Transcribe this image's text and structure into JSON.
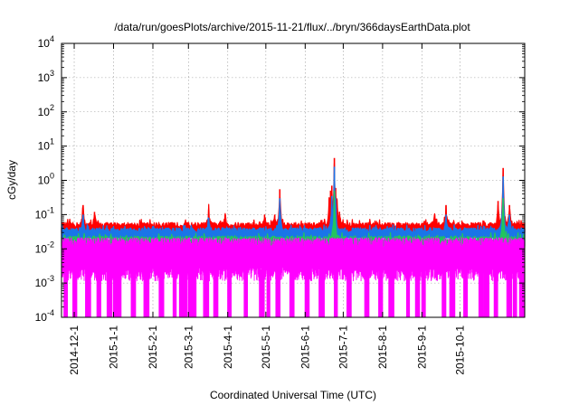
{
  "chart_data": {
    "type": "line",
    "title": "/data/run/goesPlots/archive/2015-11-21/flux/../bryn/366daysEarthData.plot",
    "xlabel": "Coordinated Universal Time (UTC)",
    "ylabel": "cGy/day",
    "yscale": "log",
    "ylim": [
      0.0001,
      10000
    ],
    "xlim": [
      "2014-11-21",
      "2015-11-21"
    ],
    "grid": true,
    "legend": "none",
    "yticks": [
      {
        "value": 0.0001,
        "mant": "10",
        "exp": "-4"
      },
      {
        "value": 0.001,
        "mant": "10",
        "exp": "-3"
      },
      {
        "value": 0.01,
        "mant": "10",
        "exp": "-2"
      },
      {
        "value": 0.1,
        "mant": "10",
        "exp": "-1"
      },
      {
        "value": 1,
        "mant": "10",
        "exp": "0"
      },
      {
        "value": 10,
        "mant": "10",
        "exp": "1"
      },
      {
        "value": 100,
        "mant": "10",
        "exp": "2"
      },
      {
        "value": 1000,
        "mant": "10",
        "exp": "3"
      },
      {
        "value": 10000,
        "mant": "10",
        "exp": "4"
      }
    ],
    "xticks": [
      {
        "date": "2014-12-01",
        "label": "2014-12-1"
      },
      {
        "date": "2015-01-01",
        "label": "2015-1-1"
      },
      {
        "date": "2015-02-01",
        "label": "2015-2-1"
      },
      {
        "date": "2015-03-01",
        "label": "2015-3-1"
      },
      {
        "date": "2015-04-01",
        "label": "2015-4-1"
      },
      {
        "date": "2015-05-01",
        "label": "2015-5-1"
      },
      {
        "date": "2015-06-01",
        "label": "2015-6-1"
      },
      {
        "date": "2015-07-01",
        "label": "2015-7-1"
      },
      {
        "date": "2015-08-01",
        "label": "2015-8-1"
      },
      {
        "date": "2015-09-01",
        "label": "2015-9-1"
      },
      {
        "date": "2015-10-01",
        "label": "2015-10-1"
      }
    ],
    "series": [
      {
        "color": "#ff0000",
        "baseline": 0.05,
        "spikes": [
          {
            "date": "2014-12-08",
            "value": 0.19
          },
          {
            "date": "2014-12-17",
            "value": 0.12
          },
          {
            "date": "2015-03-17",
            "value": 0.14
          },
          {
            "date": "2015-03-30",
            "value": 0.1
          },
          {
            "date": "2015-04-30",
            "value": 0.1
          },
          {
            "date": "2015-05-08",
            "value": 0.1
          },
          {
            "date": "2015-05-12",
            "value": 0.55
          },
          {
            "date": "2015-06-20",
            "value": 0.3
          },
          {
            "date": "2015-06-21",
            "value": 0.5
          },
          {
            "date": "2015-06-22",
            "value": 0.7
          },
          {
            "date": "2015-06-24",
            "value": 4.5
          },
          {
            "date": "2015-06-25",
            "value": 0.6
          },
          {
            "date": "2015-06-26",
            "value": 0.28
          },
          {
            "date": "2015-06-28",
            "value": 0.12
          },
          {
            "date": "2015-09-11",
            "value": 0.1
          },
          {
            "date": "2015-09-20",
            "value": 0.19
          },
          {
            "date": "2015-10-31",
            "value": 0.25
          },
          {
            "date": "2015-11-04",
            "value": 2.3
          },
          {
            "date": "2015-11-09",
            "value": 0.19
          }
        ]
      },
      {
        "color": "#1a75e8",
        "baseline": 0.035,
        "spikes": [
          {
            "date": "2014-12-08",
            "value": 0.1
          },
          {
            "date": "2015-03-17",
            "value": 0.08
          },
          {
            "date": "2015-05-12",
            "value": 0.3
          },
          {
            "date": "2015-06-22",
            "value": 0.35
          },
          {
            "date": "2015-06-24",
            "value": 2.5
          },
          {
            "date": "2015-06-25",
            "value": 0.3
          },
          {
            "date": "2015-09-20",
            "value": 0.1
          },
          {
            "date": "2015-11-04",
            "value": 1.3
          },
          {
            "date": "2015-11-09",
            "value": 0.1
          }
        ]
      },
      {
        "color": "#22c55e",
        "baseline": 0.02,
        "spikes": [
          {
            "date": "2015-06-24",
            "value": 0.5
          },
          {
            "date": "2015-11-04",
            "value": 0.3
          }
        ]
      },
      {
        "color": "#ff00ff",
        "baseline": 0.012,
        "floor": 0.0025,
        "dropouts": [
          "2014-11-24",
          "2014-12-01",
          "2014-12-11",
          "2014-12-20",
          "2014-12-28",
          "2015-01-02",
          "2015-01-04",
          "2015-01-16",
          "2015-01-26",
          "2015-02-07",
          "2015-02-18",
          "2015-02-23",
          "2015-02-25",
          "2015-03-02",
          "2015-03-04",
          "2015-03-14",
          "2015-03-22",
          "2015-04-02",
          "2015-04-15",
          "2015-04-27",
          "2015-05-03",
          "2015-05-10",
          "2015-05-21",
          "2015-06-02",
          "2015-06-13",
          "2015-06-25",
          "2015-07-05",
          "2015-07-19",
          "2015-07-30",
          "2015-08-07",
          "2015-08-21",
          "2015-08-28",
          "2015-09-02",
          "2015-09-18",
          "2015-09-24",
          "2015-10-05",
          "2015-10-17",
          "2015-10-21",
          "2015-10-29",
          "2015-11-08",
          "2015-11-13",
          "2015-11-18"
        ]
      }
    ]
  }
}
